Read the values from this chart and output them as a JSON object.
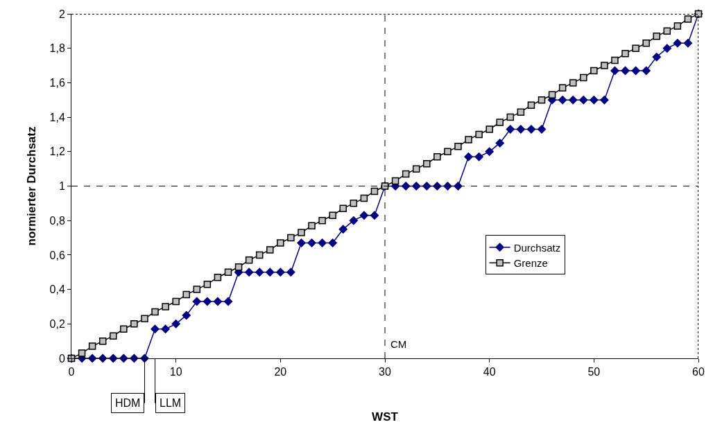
{
  "chart_data": {
    "type": "line",
    "xlabel": "WST",
    "ylabel": "normierter Durchsatz",
    "x": [
      0,
      1,
      2,
      3,
      4,
      5,
      6,
      7,
      8,
      9,
      10,
      11,
      12,
      13,
      14,
      15,
      16,
      17,
      18,
      19,
      20,
      21,
      22,
      23,
      24,
      25,
      26,
      27,
      28,
      29,
      30,
      31,
      32,
      33,
      34,
      35,
      36,
      37,
      38,
      39,
      40,
      41,
      42,
      43,
      44,
      45,
      46,
      47,
      48,
      49,
      50,
      51,
      52,
      53,
      54,
      55,
      56,
      57,
      58,
      59,
      60
    ],
    "series": [
      {
        "name": "Durchsatz",
        "color": "#000080",
        "marker": "diamond",
        "values": [
          0,
          0,
          0,
          0,
          0,
          0,
          0,
          0,
          0.17,
          0.17,
          0.2,
          0.25,
          0.33,
          0.33,
          0.33,
          0.33,
          0.5,
          0.5,
          0.5,
          0.5,
          0.5,
          0.5,
          0.67,
          0.67,
          0.67,
          0.67,
          0.75,
          0.8,
          0.83,
          0.83,
          1,
          1,
          1,
          1,
          1,
          1,
          1,
          1,
          1.17,
          1.17,
          1.2,
          1.25,
          1.33,
          1.33,
          1.33,
          1.33,
          1.5,
          1.5,
          1.5,
          1.5,
          1.5,
          1.5,
          1.67,
          1.67,
          1.67,
          1.67,
          1.75,
          1.8,
          1.83,
          1.83,
          2
        ]
      },
      {
        "name": "Grenze",
        "color": "#000000",
        "marker": "square",
        "values": [
          0,
          0.03,
          0.07,
          0.1,
          0.13,
          0.17,
          0.2,
          0.23,
          0.27,
          0.3,
          0.33,
          0.37,
          0.4,
          0.43,
          0.47,
          0.5,
          0.53,
          0.57,
          0.6,
          0.63,
          0.67,
          0.7,
          0.73,
          0.77,
          0.8,
          0.83,
          0.87,
          0.9,
          0.93,
          0.97,
          1,
          1.03,
          1.07,
          1.1,
          1.13,
          1.17,
          1.2,
          1.23,
          1.27,
          1.3,
          1.33,
          1.37,
          1.4,
          1.43,
          1.47,
          1.5,
          1.53,
          1.57,
          1.6,
          1.63,
          1.67,
          1.7,
          1.73,
          1.77,
          1.8,
          1.83,
          1.87,
          1.9,
          1.93,
          1.97,
          2
        ]
      }
    ],
    "xlim": [
      0,
      60
    ],
    "xticks": [
      0,
      10,
      20,
      30,
      40,
      50,
      60
    ],
    "ylim": [
      0,
      2
    ],
    "yticks": [
      0,
      {
        "value": 0.2,
        "label": "0,2"
      },
      {
        "value": 0.4,
        "label": "0,4"
      },
      {
        "value": 0.6,
        "label": "0,6"
      },
      {
        "value": 0.8,
        "label": "0,8"
      },
      1,
      {
        "value": 1.2,
        "label": "1,2"
      },
      {
        "value": 1.4,
        "label": "1,4"
      },
      {
        "value": 1.6,
        "label": "1,6"
      },
      {
        "value": 1.8,
        "label": "1,8"
      },
      2
    ],
    "ref_lines": [
      {
        "axis": "y",
        "value": 1,
        "line_style": "dashed",
        "color": "#000000"
      },
      {
        "axis": "x",
        "value": 30,
        "label": "CM",
        "line_style": "dashed",
        "color": "#000000"
      },
      {
        "axis": "x",
        "value": 7,
        "label": "HDM",
        "line_style": "solid",
        "color": "#000000"
      },
      {
        "axis": "x",
        "value": 8,
        "label": "LLM",
        "line_style": "solid",
        "color": "#000000"
      }
    ],
    "legend": "right",
    "line_style": "solid"
  }
}
